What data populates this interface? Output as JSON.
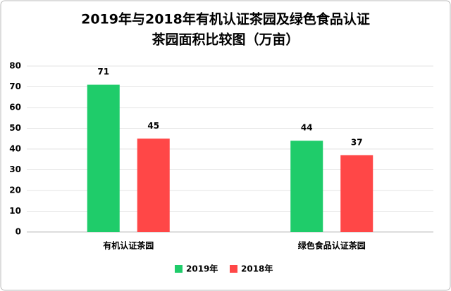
{
  "chart_data": {
    "type": "bar",
    "title": [
      "2019年与2018年有机认证茶园及绿色食品认证",
      "茶园面积比较图（万亩）"
    ],
    "categories": [
      "有机认证茶园",
      "绿色食品认证茶园"
    ],
    "series": [
      {
        "name": "2019年",
        "color": "#1fcc6a",
        "values": [
          71,
          44
        ]
      },
      {
        "name": "2018年",
        "color": "#ff4747",
        "values": [
          45,
          37
        ]
      }
    ],
    "ylim": [
      0,
      80
    ],
    "yticks": [
      0,
      10,
      20,
      30,
      40,
      50,
      60,
      70,
      80
    ],
    "grid": true,
    "legend": "bottom"
  }
}
